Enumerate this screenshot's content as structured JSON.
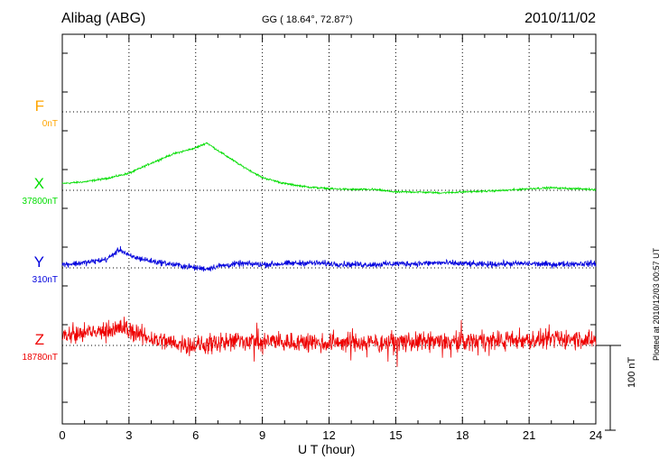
{
  "header": {
    "station": "Alibag (ABG)",
    "coords": "GG ( 18.64°,  72.87°)",
    "date": "2010/11/02"
  },
  "plotted_note": "Plotted at 2010/12/03 00:57 UT",
  "scale_label": "100 nT",
  "chart_data": {
    "type": "line",
    "xlabel": "U T (hour)",
    "xlim": [
      0,
      24
    ],
    "x_ticks": [
      "0",
      "3",
      "6",
      "9",
      "12",
      "15",
      "18",
      "21",
      "24"
    ],
    "scale_bar_nT": 100,
    "series": [
      {
        "name": "F",
        "baseline_label": "0nT",
        "color": "#FFA500",
        "baseline_nT": 0,
        "offset_nT": 0,
        "x": [],
        "values": []
      },
      {
        "name": "X",
        "baseline_label": "37800nT",
        "color": "#00DD00",
        "baseline_nT": 37800,
        "offset_nT": 0,
        "x": [
          0,
          1,
          2,
          3,
          4,
          5,
          6,
          6.5,
          7,
          8,
          9,
          10,
          11,
          12,
          13,
          14,
          15,
          16,
          17,
          18,
          19,
          20,
          21,
          22,
          23,
          24
        ],
        "values": [
          37808,
          37810,
          37814,
          37820,
          37832,
          37843,
          37850,
          37856,
          37847,
          37830,
          37815,
          37808,
          37804,
          37802,
          37801,
          37801,
          37798,
          37798,
          37797,
          37798,
          37799,
          37800,
          37802,
          37803,
          37802,
          37801
        ],
        "noise": 0.8
      },
      {
        "name": "Y",
        "baseline_label": "310nT",
        "color": "#0000DD",
        "baseline_nT": 310,
        "offset_nT": 0,
        "x": [
          0,
          1,
          2,
          2.6,
          3,
          4,
          5,
          6,
          6.5,
          7,
          8,
          9,
          10,
          11,
          12,
          13,
          14,
          15,
          16,
          17,
          18,
          19,
          20,
          21,
          22,
          23,
          24
        ],
        "values": [
          314,
          316,
          320,
          332,
          324,
          318,
          314,
          310,
          309,
          312,
          315,
          314,
          315,
          316,
          315,
          314,
          314,
          315,
          315,
          316,
          315,
          314,
          315,
          315,
          314,
          315,
          315
        ],
        "noise": 2.5
      },
      {
        "name": "Z",
        "baseline_label": "18780nT",
        "color": "#EE0000",
        "baseline_nT": 18780,
        "offset_nT": 0,
        "x": [
          0,
          1,
          2,
          2.8,
          3,
          4,
          5,
          6,
          7,
          8,
          9,
          10,
          11,
          12,
          13,
          14,
          15,
          16,
          17,
          18,
          19,
          20,
          21,
          22,
          23,
          24
        ],
        "values": [
          18791,
          18794,
          18797,
          18802,
          18797,
          18788,
          18783,
          18780,
          18782,
          18786,
          18785,
          18784,
          18784,
          18783,
          18783,
          18783,
          18783,
          18784,
          18784,
          18785,
          18786,
          18786,
          18786,
          18787,
          18788,
          18786
        ],
        "noise": 8
      }
    ]
  }
}
